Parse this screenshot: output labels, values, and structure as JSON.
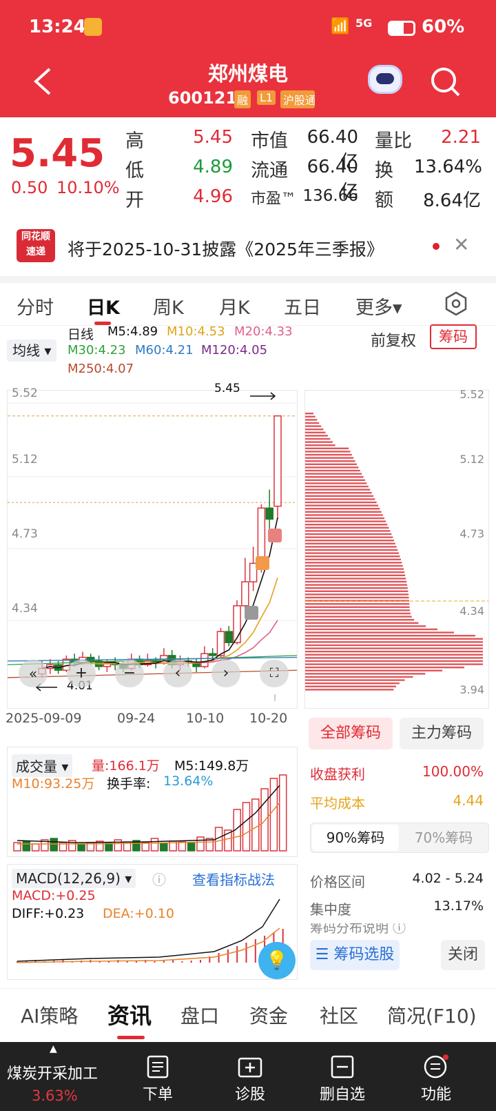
{
  "status_bar": {
    "time": "13:24",
    "battery": "60%",
    "net": "5G"
  },
  "header": {
    "title": "郑州煤电",
    "code": "600121",
    "badges": [
      "融",
      "L1",
      "沪股通"
    ]
  },
  "quote": {
    "price": "5.45",
    "change": "0.50",
    "change_pct": "10.10%",
    "high_label": "高",
    "high": "5.45",
    "low_label": "低",
    "low": "4.89",
    "open_label": "开",
    "open": "4.96",
    "mcap_label": "市值",
    "mcap": "66.40亿",
    "float_label": "流通",
    "float": "66.40亿",
    "pe_label": "市盈™",
    "pe": "136.66",
    "vr_label": "量比",
    "vr": "2.21",
    "turn_label": "换",
    "turn": "13.64%",
    "amt_label": "额",
    "amt": "8.64亿"
  },
  "notice": {
    "logo_top": "同花顺",
    "logo_bottom": "速递",
    "text": "将于2025-10-31披露《2025年三季报》"
  },
  "tabs": [
    "分时",
    "日K",
    "周K",
    "月K",
    "五日",
    "更多▾"
  ],
  "ma": {
    "selector": "均线",
    "daily": "日线",
    "m5": "M5:4.89",
    "m10": "M10:4.53",
    "m20": "M20:4.33",
    "m30": "M30:4.23",
    "m60": "M60:4.21",
    "m120": "M120:4.05",
    "m250": "M250:4.07",
    "fuquan": "前复权",
    "chouma": "筹码"
  },
  "axis": {
    "y": [
      "5.52",
      "5.12",
      "4.73",
      "4.34",
      "3.94"
    ],
    "x": [
      "2025-09-09",
      "09-24",
      "10-10",
      "10-20"
    ],
    "high_mark": "5.45",
    "low_mark": "4.01"
  },
  "volume": {
    "selector": "成交量",
    "vol": "量:166.1万",
    "m5": "M5:149.8万",
    "m10": "M10:93.25万",
    "turnover_label": "换手率:",
    "turnover": "13.64%"
  },
  "macd": {
    "selector": "MACD(12,26,9)",
    "link": "查看指标战法",
    "macd": "MACD:+0.25",
    "diff": "DIFF:+0.23",
    "dea": "DEA:+0.10"
  },
  "chips": {
    "tab_all": "全部筹码",
    "tab_main": "主力筹码",
    "profit_label": "收盘获利",
    "profit": "100.00%",
    "avg_label": "平均成本",
    "avg": "4.44",
    "p90": "90%筹码",
    "p70": "70%筹码",
    "range_label": "价格区间",
    "range": "4.02 - 5.24",
    "conc_label": "集中度",
    "conc": "13.17%",
    "desc": "筹码分布说明 ⓘ",
    "select_btn": "筹码选股",
    "close_btn": "关闭",
    "y": [
      "5.52",
      "5.12",
      "4.73",
      "4.34",
      "3.94"
    ]
  },
  "bottom_tabs": [
    "AI策略",
    "资讯",
    "盘口",
    "资金",
    "社区",
    "简况(F10)"
  ],
  "bottom_bar": {
    "sector": "煤炭开采加工",
    "sector_pct": "3.63%",
    "items": [
      "下单",
      "诊股",
      "删自选",
      "功能"
    ]
  },
  "chart_data": {
    "type": "candlestick",
    "title": "郑州煤电 日K",
    "ylim": [
      3.94,
      5.52
    ],
    "candles": [
      [
        4.05,
        4.08,
        4.12,
        4.03
      ],
      [
        4.08,
        4.1,
        4.13,
        4.05
      ],
      [
        4.1,
        4.07,
        4.12,
        4.05
      ],
      [
        4.07,
        4.13,
        4.15,
        4.06
      ],
      [
        4.13,
        4.11,
        4.16,
        4.09
      ],
      [
        4.11,
        4.14,
        4.17,
        4.1
      ],
      [
        4.14,
        4.12,
        4.16,
        4.1
      ],
      [
        4.12,
        4.09,
        4.15,
        4.07
      ],
      [
        4.09,
        4.11,
        4.13,
        4.06
      ],
      [
        4.11,
        4.1,
        4.14,
        4.07
      ],
      [
        4.1,
        4.08,
        4.12,
        4.06
      ],
      [
        4.08,
        4.13,
        4.16,
        4.07
      ],
      [
        4.13,
        4.1,
        4.15,
        4.08
      ],
      [
        4.1,
        4.12,
        4.16,
        4.09
      ],
      [
        4.12,
        4.11,
        4.14,
        4.08
      ],
      [
        4.11,
        4.15,
        4.19,
        4.1
      ],
      [
        4.15,
        4.1,
        4.18,
        4.08
      ],
      [
        4.1,
        4.12,
        4.15,
        4.07
      ],
      [
        4.12,
        4.11,
        4.14,
        4.09
      ],
      [
        4.11,
        4.09,
        4.13,
        4.06
      ],
      [
        4.09,
        4.16,
        4.2,
        4.08
      ],
      [
        4.16,
        4.15,
        4.19,
        4.12
      ],
      [
        4.15,
        4.28,
        4.3,
        4.14
      ],
      [
        4.28,
        4.22,
        4.31,
        4.2
      ],
      [
        4.22,
        4.42,
        4.45,
        4.21
      ],
      [
        4.42,
        4.55,
        4.68,
        4.38
      ],
      [
        4.55,
        4.65,
        4.74,
        4.5
      ],
      [
        4.65,
        4.95,
        4.97,
        4.6
      ],
      [
        4.95,
        4.89,
        5.05,
        4.83
      ],
      [
        4.96,
        5.45,
        5.45,
        4.89
      ]
    ]
  }
}
